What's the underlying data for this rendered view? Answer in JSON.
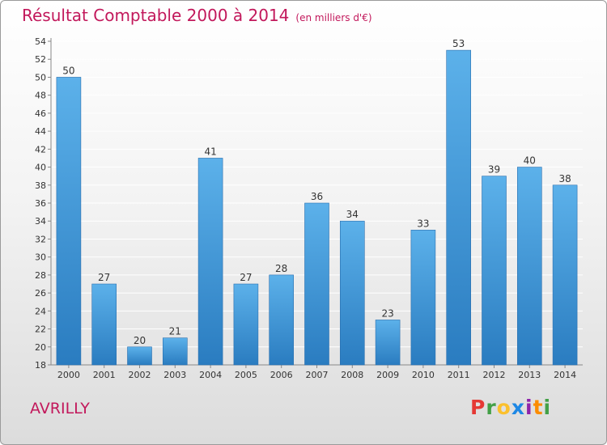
{
  "header": {
    "title": "Résultat Comptable 2000 à 2014",
    "unit": "(en milliers d'€)"
  },
  "footer": {
    "town": "AVRILLY",
    "logo": "Proxiti",
    "logo_colors": [
      "#e53935",
      "#43a047",
      "#fbc02d",
      "#1e88e5",
      "#8e24aa",
      "#fb8c00",
      "#43a047"
    ]
  },
  "colors": {
    "bar_top": "#5cb1ea",
    "bar_bottom": "#2a7cc0",
    "title": "#c2185b",
    "grid": "#ffffff"
  },
  "chart_data": {
    "type": "bar",
    "categories": [
      "2000",
      "2001",
      "2002",
      "2003",
      "2004",
      "2005",
      "2006",
      "2007",
      "2008",
      "2009",
      "2010",
      "2011",
      "2012",
      "2013",
      "2014"
    ],
    "values": [
      50,
      27,
      20,
      21,
      41,
      27,
      28,
      36,
      34,
      23,
      33,
      53,
      39,
      40,
      38
    ],
    "ylim": [
      18,
      54
    ],
    "yticks": [
      18,
      20,
      22,
      24,
      26,
      28,
      30,
      32,
      34,
      36,
      38,
      40,
      42,
      44,
      46,
      48,
      50,
      52,
      54
    ],
    "grid": true
  }
}
